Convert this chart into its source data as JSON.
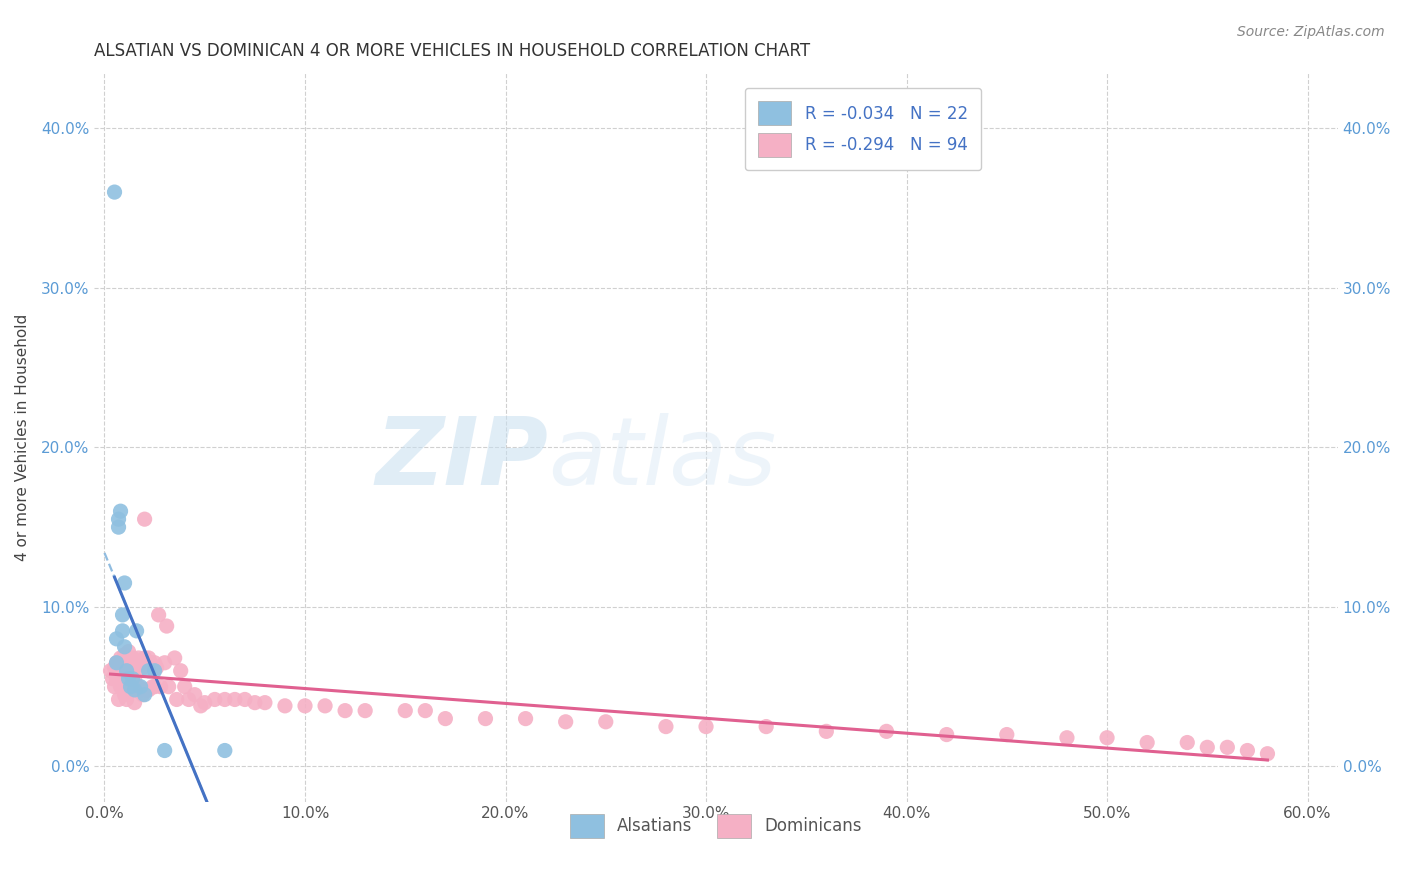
{
  "title": "ALSATIAN VS DOMINICAN 4 OR MORE VEHICLES IN HOUSEHOLD CORRELATION CHART",
  "source": "Source: ZipAtlas.com",
  "ylabel": "4 or more Vehicles in Household",
  "xlabel_ticks": [
    "0.0%",
    "10.0%",
    "20.0%",
    "30.0%",
    "40.0%",
    "50.0%",
    "60.0%"
  ],
  "xlabel_vals": [
    0.0,
    0.1,
    0.2,
    0.3,
    0.4,
    0.5,
    0.6
  ],
  "ylabel_vals": [
    0.0,
    0.1,
    0.2,
    0.3,
    0.4
  ],
  "ylabel_ticks": [
    "0.0%",
    "10.0%",
    "20.0%",
    "30.0%",
    "40.0%"
  ],
  "xlim": [
    -0.005,
    0.615
  ],
  "ylim": [
    -0.022,
    0.435
  ],
  "watermark_zip": "ZIP",
  "watermark_atlas": "atlas",
  "legend_r_alsatian": "R = -0.034",
  "legend_n_alsatian": "N = 22",
  "legend_r_dominican": "R = -0.294",
  "legend_n_dominican": "N = 94",
  "alsatian_color": "#8fc0e0",
  "dominican_color": "#f5b0c5",
  "alsatian_line_color": "#4472c4",
  "dominican_line_color": "#e06090",
  "alsatian_dash_color": "#90bce0",
  "grid_color": "#d0d0d0",
  "background_color": "#ffffff",
  "alsatian_x": [
    0.005,
    0.006,
    0.006,
    0.007,
    0.007,
    0.008,
    0.009,
    0.009,
    0.01,
    0.01,
    0.011,
    0.012,
    0.013,
    0.014,
    0.015,
    0.016,
    0.018,
    0.02,
    0.022,
    0.025,
    0.03,
    0.06
  ],
  "alsatian_y": [
    0.36,
    0.08,
    0.065,
    0.155,
    0.15,
    0.16,
    0.095,
    0.085,
    0.115,
    0.075,
    0.06,
    0.055,
    0.05,
    0.055,
    0.048,
    0.085,
    0.05,
    0.045,
    0.06,
    0.06,
    0.01,
    0.01
  ],
  "dominican_x": [
    0.003,
    0.004,
    0.005,
    0.005,
    0.006,
    0.006,
    0.007,
    0.007,
    0.007,
    0.008,
    0.008,
    0.008,
    0.009,
    0.009,
    0.01,
    0.01,
    0.01,
    0.011,
    0.011,
    0.011,
    0.012,
    0.012,
    0.012,
    0.013,
    0.013,
    0.014,
    0.014,
    0.015,
    0.015,
    0.015,
    0.016,
    0.016,
    0.017,
    0.017,
    0.018,
    0.018,
    0.019,
    0.019,
    0.02,
    0.02,
    0.021,
    0.022,
    0.022,
    0.023,
    0.024,
    0.025,
    0.025,
    0.026,
    0.027,
    0.028,
    0.03,
    0.031,
    0.032,
    0.035,
    0.036,
    0.038,
    0.04,
    0.042,
    0.045,
    0.048,
    0.05,
    0.055,
    0.06,
    0.065,
    0.07,
    0.075,
    0.08,
    0.09,
    0.1,
    0.11,
    0.12,
    0.13,
    0.15,
    0.16,
    0.17,
    0.19,
    0.21,
    0.23,
    0.25,
    0.28,
    0.3,
    0.33,
    0.36,
    0.39,
    0.42,
    0.45,
    0.48,
    0.5,
    0.52,
    0.54,
    0.55,
    0.56,
    0.57,
    0.58
  ],
  "dominican_y": [
    0.06,
    0.055,
    0.062,
    0.05,
    0.065,
    0.055,
    0.065,
    0.058,
    0.042,
    0.068,
    0.06,
    0.05,
    0.065,
    0.055,
    0.07,
    0.06,
    0.045,
    0.068,
    0.058,
    0.042,
    0.072,
    0.062,
    0.05,
    0.065,
    0.05,
    0.068,
    0.055,
    0.062,
    0.055,
    0.04,
    0.065,
    0.048,
    0.068,
    0.05,
    0.065,
    0.048,
    0.062,
    0.045,
    0.155,
    0.068,
    0.048,
    0.068,
    0.048,
    0.065,
    0.05,
    0.065,
    0.05,
    0.062,
    0.095,
    0.05,
    0.065,
    0.088,
    0.05,
    0.068,
    0.042,
    0.06,
    0.05,
    0.042,
    0.045,
    0.038,
    0.04,
    0.042,
    0.042,
    0.042,
    0.042,
    0.04,
    0.04,
    0.038,
    0.038,
    0.038,
    0.035,
    0.035,
    0.035,
    0.035,
    0.03,
    0.03,
    0.03,
    0.028,
    0.028,
    0.025,
    0.025,
    0.025,
    0.022,
    0.022,
    0.02,
    0.02,
    0.018,
    0.018,
    0.015,
    0.015,
    0.012,
    0.012,
    0.01,
    0.008
  ]
}
